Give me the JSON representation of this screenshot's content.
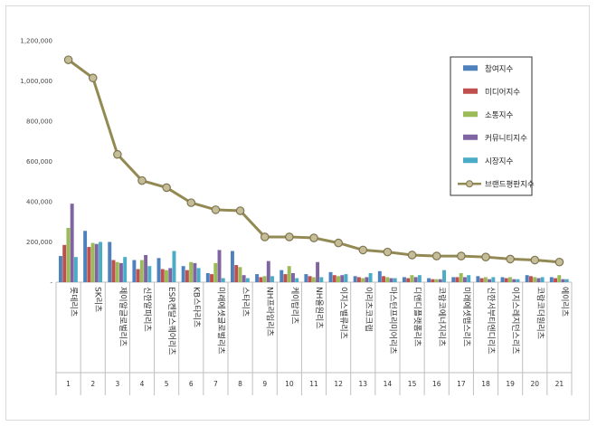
{
  "chart_data": {
    "type": "bar",
    "title": "",
    "xlabel": "",
    "ylabel": "",
    "ylim": [
      0,
      1200000
    ],
    "yticks": [
      "-",
      "200,000",
      "400,000",
      "600,000",
      "800,000",
      "1,000,000",
      "1,200,000"
    ],
    "grid": false,
    "legend_position": "top-right",
    "ranks": [
      "1",
      "2",
      "3",
      "4",
      "5",
      "6",
      "7",
      "8",
      "9",
      "10",
      "11",
      "12",
      "13",
      "14",
      "15",
      "16",
      "17",
      "18",
      "19",
      "20",
      "21"
    ],
    "categories": [
      "롯데리츠",
      "SK리츠",
      "제이알글로벌리츠",
      "신한알파리츠",
      "ESR켄달스퀘어리츠",
      "KB스타리츠",
      "미래에셋글로벌리츠",
      "스타리츠",
      "NH프라임리츠",
      "케이탑리츠",
      "NH올원리츠",
      "이지스밸류리츠",
      "이리츠코크렙",
      "마스턴프리미어리츠",
      "디앤디플랫폼리츠",
      "코람코에너지리츠",
      "미래에셋맵스리츠",
      "신한서부티엔디리츠",
      "이지스레지던스리츠",
      "코람코더원리츠",
      "에이리츠"
    ],
    "series": [
      {
        "name": "참여지수",
        "color": "#4f81bd",
        "kind": "bar",
        "values": [
          130000,
          255000,
          200000,
          110000,
          120000,
          80000,
          45000,
          155000,
          40000,
          60000,
          40000,
          50000,
          30000,
          55000,
          25000,
          20000,
          25000,
          30000,
          25000,
          35000,
          25000
        ]
      },
      {
        "name": "미디어지수",
        "color": "#c0504d",
        "kind": "bar",
        "values": [
          185000,
          175000,
          110000,
          65000,
          65000,
          60000,
          40000,
          85000,
          25000,
          40000,
          30000,
          35000,
          25000,
          30000,
          20000,
          15000,
          25000,
          20000,
          20000,
          30000,
          20000
        ]
      },
      {
        "name": "소통지수",
        "color": "#9bbb59",
        "kind": "bar",
        "values": [
          270000,
          195000,
          100000,
          110000,
          60000,
          100000,
          95000,
          75000,
          30000,
          80000,
          25000,
          30000,
          20000,
          25000,
          35000,
          15000,
          45000,
          25000,
          25000,
          25000,
          35000
        ]
      },
      {
        "name": "커뮤니티지수",
        "color": "#8064a2",
        "kind": "bar",
        "values": [
          390000,
          190000,
          95000,
          135000,
          70000,
          95000,
          160000,
          35000,
          105000,
          45000,
          100000,
          35000,
          25000,
          20000,
          25000,
          15000,
          25000,
          15000,
          15000,
          20000,
          15000
        ]
      },
      {
        "name": "시장지수",
        "color": "#4bacc6",
        "kind": "bar",
        "values": [
          125000,
          200000,
          125000,
          80000,
          155000,
          70000,
          20000,
          20000,
          30000,
          20000,
          25000,
          40000,
          45000,
          20000,
          35000,
          60000,
          35000,
          25000,
          15000,
          25000,
          15000
        ]
      },
      {
        "name": "브랜드평판지수",
        "color": "#938953",
        "kind": "line",
        "values": [
          1105000,
          1015000,
          635000,
          505000,
          470000,
          395000,
          360000,
          355000,
          225000,
          225000,
          220000,
          195000,
          160000,
          150000,
          135000,
          130000,
          130000,
          125000,
          115000,
          110000,
          100000
        ]
      }
    ]
  }
}
